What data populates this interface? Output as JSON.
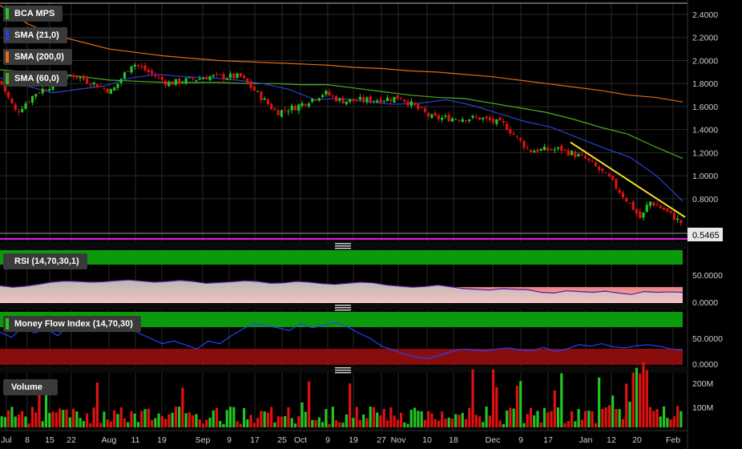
{
  "legend": {
    "price": "BCA MPS",
    "sma21": "SMA (21,0)",
    "sma200": "SMA (200,0)",
    "sma60": "SMA (60,0)",
    "rsi": "RSI (14,70,30,1)",
    "mfi": "Money Flow Index (14,70,30)",
    "volume": "Volume"
  },
  "colors": {
    "up": "#22c422",
    "down": "#e01010",
    "sma21": "#2a3fd8",
    "sma60": "#48b020",
    "sma200": "#e06a18",
    "trendline": "#f0e020",
    "last_price_line": "#e020e0",
    "grid": "#2a2a2a",
    "band_green": "#0b9a0b",
    "band_red": "#8a0d0d"
  },
  "chart_data": [
    {
      "type": "candlestick",
      "title": "BCA MPS",
      "y_ticks": [
        "2.4000",
        "2.2000",
        "2.0000",
        "1.8000",
        "1.6000",
        "1.4000",
        "1.2000",
        "1.0000",
        "0.8000"
      ],
      "ylim": [
        0.54,
        2.5
      ],
      "last_price_label": "0.5465",
      "x_tick_labels": [
        "Jul",
        "8",
        "15",
        "22",
        "Aug",
        "11",
        "19",
        "Sep",
        "9",
        "17",
        "25",
        "Oct",
        "9",
        "19",
        "27",
        "Nov",
        "10",
        "18",
        "Dec",
        "9",
        "17",
        "Jan",
        "12",
        "20",
        "Feb"
      ],
      "sma_21": [
        1.85,
        1.78,
        1.72,
        1.75,
        1.78,
        1.85,
        1.88,
        1.86,
        1.85,
        1.83,
        1.8,
        1.75,
        1.66,
        1.67,
        1.64,
        1.62,
        1.63,
        1.66,
        1.61,
        1.54,
        1.47,
        1.42,
        1.33,
        1.24,
        1.16,
        1.0,
        0.78
      ],
      "sma_60": [
        1.92,
        1.9,
        1.88,
        1.86,
        1.83,
        1.82,
        1.81,
        1.81,
        1.81,
        1.8,
        1.8,
        1.79,
        1.79,
        1.76,
        1.73,
        1.7,
        1.68,
        1.67,
        1.63,
        1.59,
        1.55,
        1.49,
        1.42,
        1.36,
        1.25,
        1.15
      ],
      "sma_200": [
        2.48,
        2.32,
        2.22,
        2.16,
        2.1,
        2.07,
        2.04,
        2.02,
        2.0,
        1.99,
        1.98,
        1.97,
        1.96,
        1.94,
        1.93,
        1.91,
        1.9,
        1.88,
        1.86,
        1.83,
        1.8,
        1.77,
        1.74,
        1.7,
        1.68,
        1.64
      ],
      "trendline": {
        "start": 1.29,
        "end": 0.64
      }
    },
    {
      "type": "line",
      "title": "RSI (14,70,30,1)",
      "y_ticks": [
        "50.0000",
        "0.0000"
      ],
      "values": [
        48,
        44,
        47,
        52,
        58,
        61,
        60,
        58,
        59,
        62,
        64,
        61,
        58,
        60,
        63,
        60,
        55,
        57,
        59,
        62,
        60,
        55,
        56,
        60,
        58,
        54,
        52,
        55,
        58,
        56,
        50,
        47,
        44,
        46,
        50,
        45,
        40,
        38,
        36,
        40,
        38,
        37,
        30,
        28,
        34,
        32,
        30,
        33,
        28,
        24,
        32,
        30,
        31,
        30
      ]
    },
    {
      "type": "line",
      "title": "Money Flow Index (14,70,30)",
      "y_ticks": [
        "50.0000",
        "0.0000"
      ],
      "values": [
        62,
        52,
        72,
        60,
        68,
        55,
        76,
        70,
        78,
        74,
        80,
        72,
        60,
        50,
        40,
        45,
        38,
        30,
        45,
        40,
        55,
        68,
        78,
        74,
        70,
        65,
        78,
        70,
        75,
        80,
        72,
        60,
        50,
        35,
        28,
        20,
        15,
        12,
        18,
        25,
        30,
        28,
        26,
        30,
        32,
        28,
        27,
        33,
        25,
        30,
        38,
        35,
        40,
        34,
        32,
        36,
        38,
        35,
        30,
        28
      ]
    },
    {
      "type": "bar",
      "title": "Volume",
      "y_ticks": [
        "200M",
        "100M"
      ]
    }
  ]
}
